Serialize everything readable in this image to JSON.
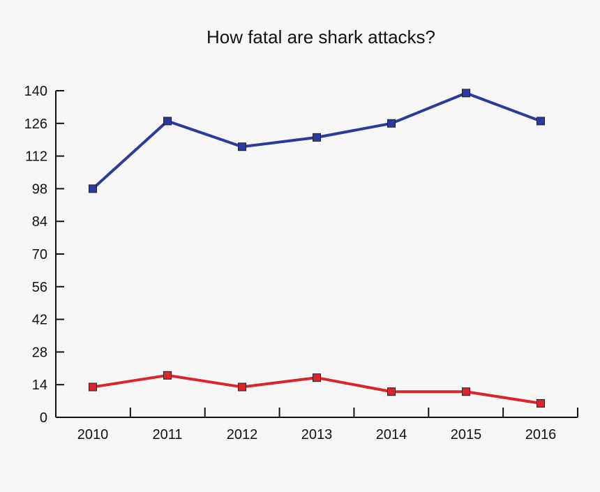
{
  "chart_data": {
    "type": "line",
    "title": "How fatal are shark attacks?",
    "xlabel": "",
    "ylabel": "",
    "categories": [
      "2010",
      "2011",
      "2012",
      "2013",
      "2014",
      "2015",
      "2016"
    ],
    "ylim": [
      0,
      140
    ],
    "yticks": [
      0,
      14,
      28,
      42,
      56,
      70,
      84,
      98,
      112,
      126,
      140
    ],
    "grid": false,
    "legend": "none",
    "series": [
      {
        "color": "#2b3a9e",
        "marker_color": "#2b3a9e",
        "values": [
          98,
          127,
          116,
          120,
          126,
          139,
          127
        ]
      },
      {
        "color": "#d9252b",
        "marker_color": "#d9252b",
        "values": [
          13,
          18,
          13,
          17,
          11,
          11,
          6
        ]
      }
    ]
  }
}
